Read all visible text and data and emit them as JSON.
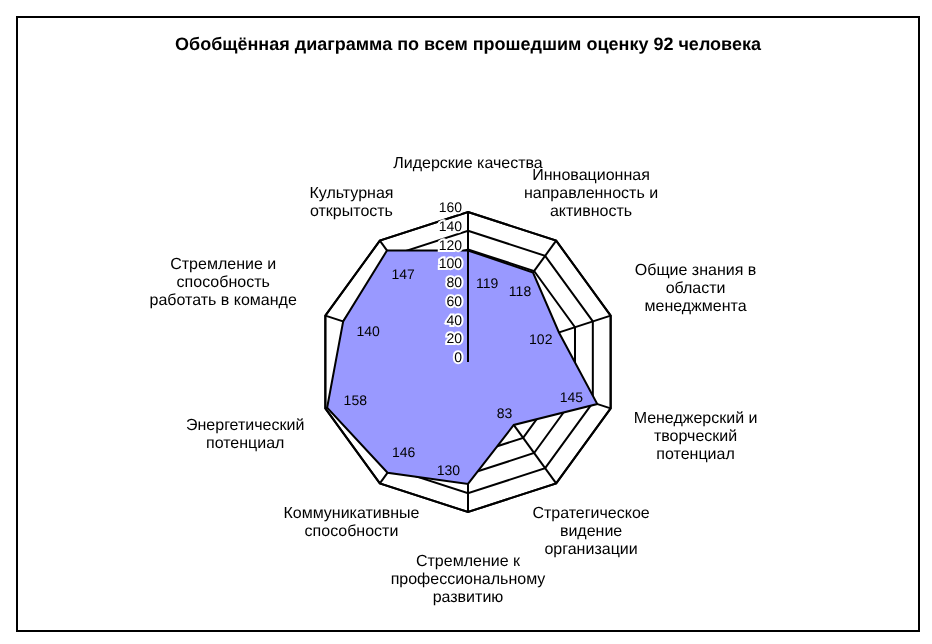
{
  "chart_data": {
    "type": "radar",
    "title": "Обобщённая диаграмма по всем прошедшим оценку 92 человека",
    "categories": [
      "Лидерские качества",
      "Инновационная направленность и активность",
      "Общие знания в области менеджмента",
      "Менеджерский и творческий потенциал",
      "Стратегическое видение организации",
      "Стремление к профессиональному развитию",
      "Коммуникативные способности",
      "Энергетический потенциал",
      "Стремление и способность работать в команде",
      "Культурная открытость"
    ],
    "series": [
      {
        "color": "#9999ff",
        "values": [
          119,
          118,
          102,
          145,
          83,
          130,
          146,
          158,
          140,
          147
        ]
      }
    ],
    "ylim": [
      0,
      160
    ],
    "yticks": [
      0,
      20,
      40,
      60,
      80,
      100,
      120,
      140,
      160
    ],
    "grid": true,
    "data_labels": true,
    "legend": false
  }
}
